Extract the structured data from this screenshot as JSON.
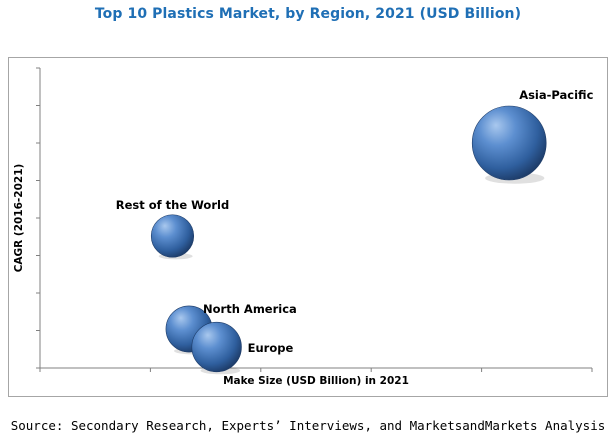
{
  "chart_data": {
    "type": "scatter",
    "title": "Top 10 Plastics Market, by Region, 2021 (USD Billion)",
    "xlabel": "Make Size (USD Billion) in 2021",
    "ylabel": "CAGR (2016-2021)",
    "xlim": [
      0,
      10
    ],
    "ylim": [
      0,
      10
    ],
    "grid": false,
    "bubble_color": "#2f5f9e",
    "points": [
      {
        "label": "Asia-Pacific",
        "x": 8.5,
        "y": 7.5,
        "size": 10
      },
      {
        "label": "Rest of the World",
        "x": 2.4,
        "y": 4.4,
        "size": 3.3
      },
      {
        "label": "North America",
        "x": 2.7,
        "y": 1.3,
        "size": 3.9
      },
      {
        "label": "Europe",
        "x": 3.2,
        "y": 0.7,
        "size": 4.5
      }
    ]
  },
  "source": "Source: Secondary Research, Experts’ Interviews, and MarketsandMarkets Analysis"
}
